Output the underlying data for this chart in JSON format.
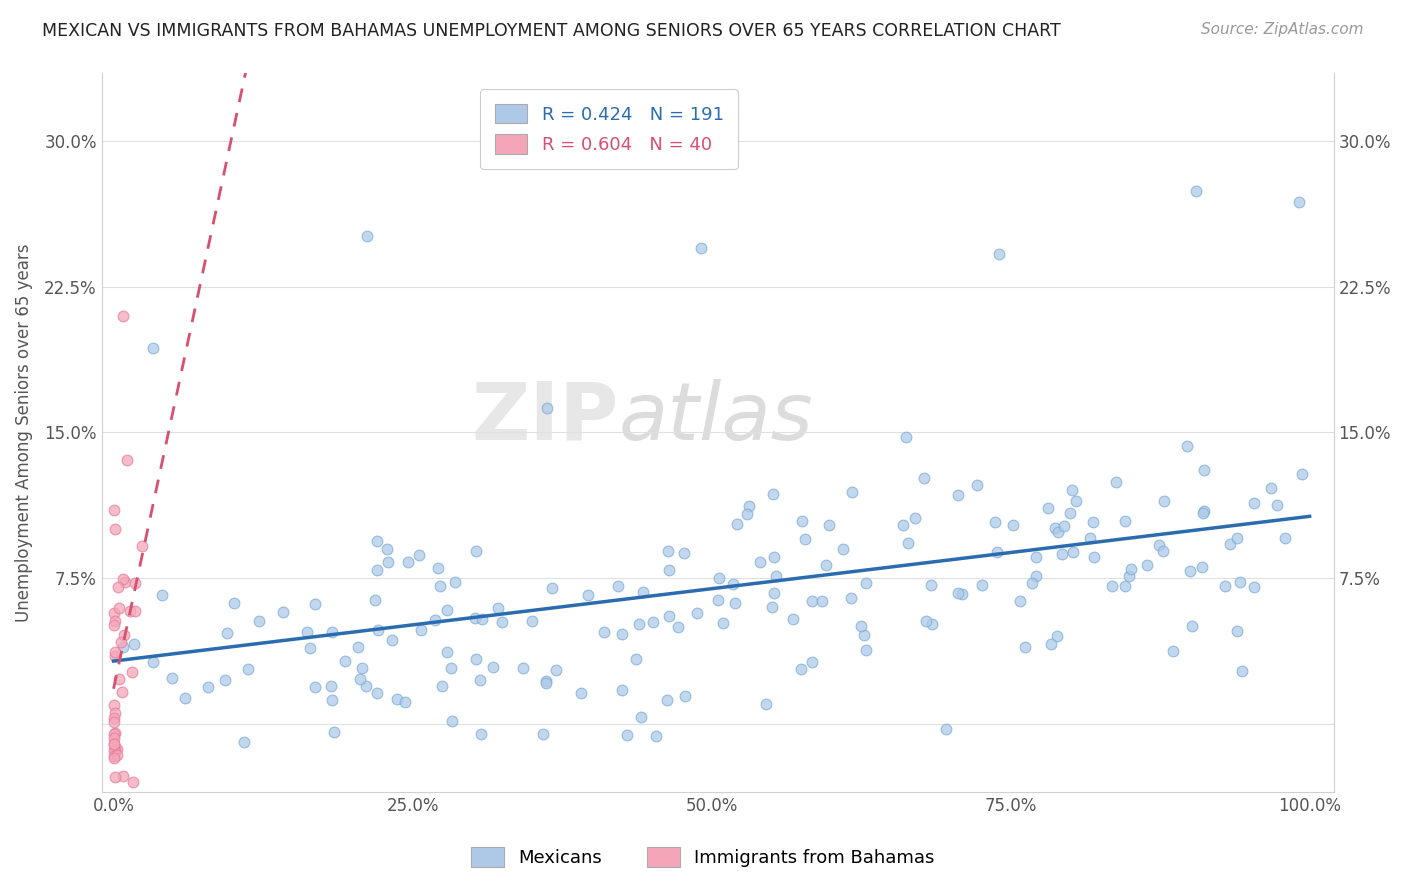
{
  "title": "MEXICAN VS IMMIGRANTS FROM BAHAMAS UNEMPLOYMENT AMONG SENIORS OVER 65 YEARS CORRELATION CHART",
  "source": "Source: ZipAtlas.com",
  "ylabel": "Unemployment Among Seniors over 65 years",
  "ytick_vals": [
    0.0,
    0.075,
    0.15,
    0.225,
    0.3
  ],
  "ytick_labels": [
    "",
    "7.5%",
    "15.0%",
    "22.5%",
    "30.0%"
  ],
  "xlim": [
    -0.01,
    1.02
  ],
  "ylim": [
    -0.035,
    0.335
  ],
  "watermark_zip": "ZIP",
  "watermark_atlas": "atlas",
  "mexican_color": "#aec9e8",
  "bahamas_color": "#f4a6b8",
  "mexican_edge_color": "#7aadd4",
  "bahamas_edge_color": "#e87a9a",
  "mexican_line_color": "#2b6cb0",
  "bahamas_line_color": "#d94f6e",
  "legend_label_mex": "R = 0.424   N = 191",
  "legend_label_bah": "R = 0.604   N = 40",
  "legend_color_mex": "#2b6cb0",
  "legend_color_bah": "#d94f6e",
  "legend_face_mex": "#aec9e8",
  "legend_face_bah": "#f4a6b8",
  "bottom_legend_mex": "Mexicans",
  "bottom_legend_bah": "Immigrants from Bahamas",
  "mexican_N": 191,
  "bahamas_N": 40,
  "mexican_seed": 7,
  "bahamas_seed": 13
}
